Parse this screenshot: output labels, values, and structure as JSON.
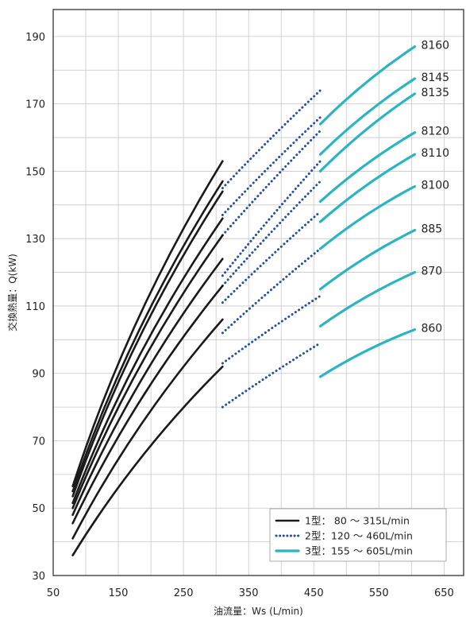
{
  "chart_data": {
    "type": "line",
    "xlabel": "油流量：Ws (L/min)",
    "ylabel": "交換熱量：Q(kW)",
    "xlim": [
      50,
      680
    ],
    "ylim": [
      30,
      198
    ],
    "xticks": [
      50,
      150,
      250,
      350,
      450,
      550,
      650
    ],
    "yticks": [
      30,
      50,
      70,
      90,
      110,
      130,
      150,
      170,
      190
    ],
    "grid": true,
    "legend_position": "bottom-right",
    "colors": {
      "type1": "#1a1a1a",
      "type2": "#2b4fa0",
      "type3": "#2bb5c0"
    },
    "legend": [
      {
        "series_type": "type1",
        "label": "1型：  80 ～ 315L/min"
      },
      {
        "series_type": "type2",
        "label": "2型：120 ～ 460L/min"
      },
      {
        "series_type": "type3",
        "label": "3型：155 ～ 605L/min"
      }
    ],
    "series": [
      {
        "name": "8160",
        "segments": [
          {
            "series_type": "type1",
            "x": [
              80,
              310
            ],
            "y": [
              56.5,
              153
            ]
          },
          {
            "series_type": "type2",
            "x": [
              310,
              460
            ],
            "y": [
              145,
              174
            ]
          },
          {
            "series_type": "type3",
            "x": [
              460,
              605
            ],
            "y": [
              164,
              187
            ]
          }
        ]
      },
      {
        "name": "8145",
        "segments": [
          {
            "series_type": "type1",
            "x": [
              80,
              310
            ],
            "y": [
              55,
              147
            ]
          },
          {
            "series_type": "type2",
            "x": [
              310,
              460
            ],
            "y": [
              137,
              166
            ]
          },
          {
            "series_type": "type3",
            "x": [
              460,
              605
            ],
            "y": [
              155,
              177.5
            ]
          }
        ]
      },
      {
        "name": "8135",
        "segments": [
          {
            "series_type": "type1",
            "x": [
              80,
              310
            ],
            "y": [
              53.5,
              144
            ]
          },
          {
            "series_type": "type2",
            "x": [
              310,
              460
            ],
            "y": [
              131,
              162
            ]
          },
          {
            "series_type": "type3",
            "x": [
              460,
              605
            ],
            "y": [
              150,
              173
            ]
          }
        ]
      },
      {
        "name": "8120",
        "segments": [
          {
            "series_type": "type1",
            "x": [
              80,
              310
            ],
            "y": [
              51.5,
              136
            ]
          },
          {
            "series_type": "type2",
            "x": [
              310,
              460
            ],
            "y": [
              119,
              153
            ]
          },
          {
            "series_type": "type3",
            "x": [
              460,
              605
            ],
            "y": [
              141,
              161.5
            ]
          }
        ]
      },
      {
        "name": "8110",
        "segments": [
          {
            "series_type": "type1",
            "x": [
              80,
              310
            ],
            "y": [
              50,
              131
            ]
          },
          {
            "series_type": "type2",
            "x": [
              310,
              460
            ],
            "y": [
              116,
              147
            ]
          },
          {
            "series_type": "type3",
            "x": [
              460,
              605
            ],
            "y": [
              135,
              155
            ]
          }
        ]
      },
      {
        "name": "8100",
        "segments": [
          {
            "series_type": "type1",
            "x": [
              80,
              310
            ],
            "y": [
              48,
              124
            ]
          },
          {
            "series_type": "type2",
            "x": [
              310,
              460
            ],
            "y": [
              111,
              138
            ]
          },
          {
            "series_type": "type3",
            "x": [
              460,
              605
            ],
            "y": [
              127,
              145.5
            ]
          }
        ]
      },
      {
        "name": "885",
        "segments": [
          {
            "series_type": "type1",
            "x": [
              80,
              310
            ],
            "y": [
              45.5,
              116
            ]
          },
          {
            "series_type": "type2",
            "x": [
              310,
              460
            ],
            "y": [
              102,
              127
            ]
          },
          {
            "series_type": "type3",
            "x": [
              460,
              605
            ],
            "y": [
              115,
              132.5
            ]
          }
        ]
      },
      {
        "name": "870",
        "segments": [
          {
            "series_type": "type1",
            "x": [
              80,
              310
            ],
            "y": [
              41,
              106
            ]
          },
          {
            "series_type": "type2",
            "x": [
              310,
              460
            ],
            "y": [
              93,
              113
            ]
          },
          {
            "series_type": "type3",
            "x": [
              460,
              605
            ],
            "y": [
              104,
              120
            ]
          }
        ]
      },
      {
        "name": "860",
        "segments": [
          {
            "series_type": "type1",
            "x": [
              80,
              310
            ],
            "y": [
              36,
              92
            ]
          },
          {
            "series_type": "type2",
            "x": [
              310,
              460
            ],
            "y": [
              80,
              99
            ]
          },
          {
            "series_type": "type3",
            "x": [
              460,
              605
            ],
            "y": [
              89,
              103
            ]
          }
        ]
      }
    ]
  }
}
